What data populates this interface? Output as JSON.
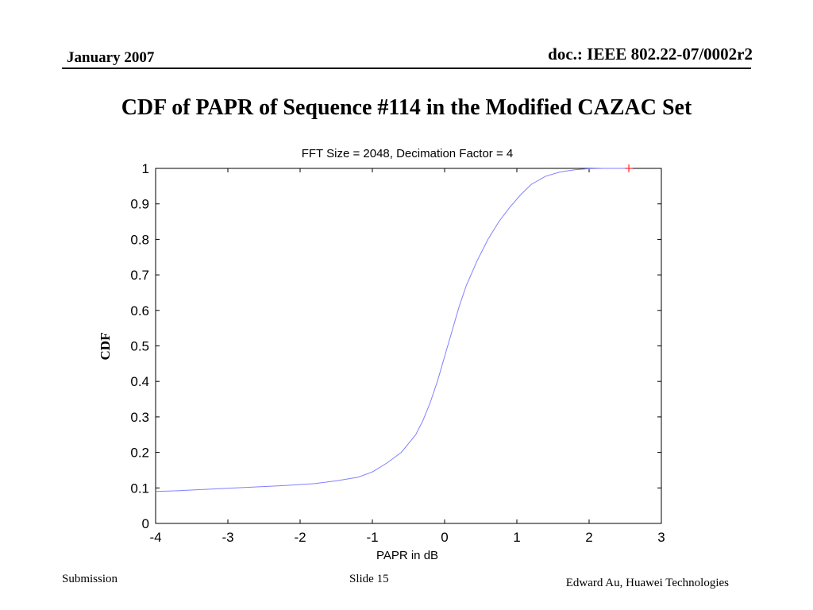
{
  "header": {
    "date": "January 2007",
    "doc_id": "doc.: IEEE 802.22-07/0002r2"
  },
  "slide": {
    "title": "CDF of PAPR of Sequence #114 in the Modified CAZAC Set"
  },
  "footer": {
    "left": "Submission",
    "center": "Slide 15",
    "right": "Edward Au, Huawei Technologies"
  },
  "colors": {
    "curve": "#8080ff",
    "marker": "#ff0000",
    "axes": "#000000"
  },
  "chart_data": {
    "type": "line",
    "title": "FFT Size = 2048, Decimation Factor = 4",
    "xlabel": "PAPR in dB",
    "ylabel": "CDF",
    "xlim": [
      -4,
      3
    ],
    "ylim": [
      0,
      1
    ],
    "xticks": [
      -4,
      -3,
      -2,
      -1,
      0,
      1,
      2,
      3
    ],
    "yticks": [
      0,
      0.1,
      0.2,
      0.3,
      0.4,
      0.5,
      0.6,
      0.7,
      0.8,
      0.9,
      1
    ],
    "grid": false,
    "series": [
      {
        "x": [
          -4.0,
          -3.7,
          -3.4,
          -3.0,
          -2.6,
          -2.2,
          -1.8,
          -1.5,
          -1.2,
          -1.0,
          -0.8,
          -0.6,
          -0.4,
          -0.3,
          -0.2,
          -0.1,
          0.0,
          0.1,
          0.2,
          0.3,
          0.45,
          0.6,
          0.75,
          0.9,
          1.05,
          1.2,
          1.4,
          1.6,
          1.8,
          2.0,
          2.2,
          2.4,
          2.55
        ],
        "y": [
          0.09,
          0.092,
          0.095,
          0.099,
          0.103,
          0.107,
          0.112,
          0.12,
          0.13,
          0.145,
          0.17,
          0.2,
          0.25,
          0.29,
          0.34,
          0.4,
          0.47,
          0.54,
          0.61,
          0.67,
          0.74,
          0.8,
          0.85,
          0.89,
          0.925,
          0.955,
          0.978,
          0.99,
          0.996,
          0.999,
          1.0,
          1.0,
          1.0
        ]
      }
    ],
    "markers": [
      {
        "x": 2.55,
        "y": 1.0,
        "symbol": "+"
      }
    ]
  }
}
